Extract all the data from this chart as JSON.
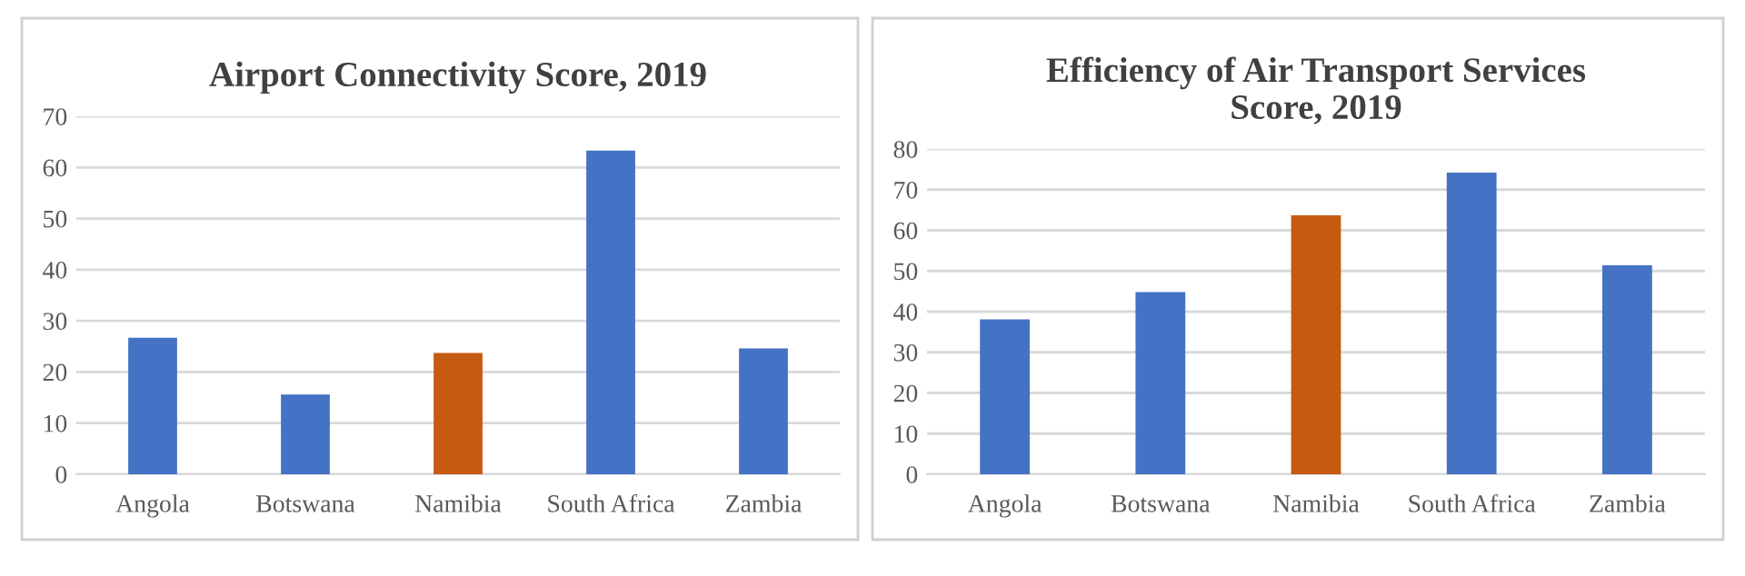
{
  "chart_data": [
    {
      "type": "bar",
      "title": "Airport Connectivity Score, 2019",
      "categories": [
        "Angola",
        "Botswana",
        "Namibia",
        "South Africa",
        "Zambia"
      ],
      "values": [
        26.7,
        15.6,
        23.7,
        63.3,
        24.6
      ],
      "colors": [
        "#4472c4",
        "#4472c4",
        "#c55a11",
        "#4472c4",
        "#4472c4"
      ],
      "ylim": [
        0,
        70
      ],
      "yticks": [
        0,
        10,
        20,
        30,
        40,
        50,
        60,
        70
      ],
      "grid": "y",
      "legend": false
    },
    {
      "type": "bar",
      "title": "Efficiency of Air Transport Services\nScore, 2019",
      "categories": [
        "Angola",
        "Botswana",
        "Namibia",
        "South Africa",
        "Zambia"
      ],
      "values": [
        38.1,
        44.8,
        63.7,
        74.2,
        51.4
      ],
      "colors": [
        "#4472c4",
        "#4472c4",
        "#c55a11",
        "#4472c4",
        "#4472c4"
      ],
      "ylim": [
        0,
        80
      ],
      "yticks": [
        0,
        10,
        20,
        30,
        40,
        50,
        60,
        70,
        80
      ],
      "grid": "y",
      "legend": false
    }
  ]
}
